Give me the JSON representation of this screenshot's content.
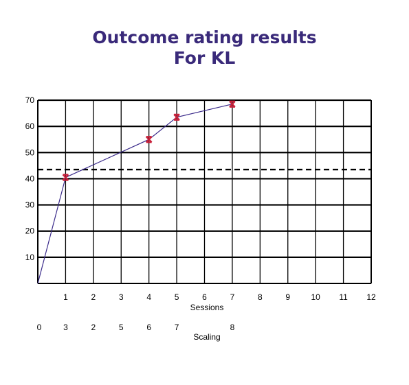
{
  "chart_data": {
    "type": "line",
    "title": "Outcome rating results",
    "subtitle": "For KL",
    "xlabel": "Sessions",
    "secondary_xlabel": "Scaling",
    "y_ticks": [
      "10",
      "20",
      "30",
      "40",
      "50",
      "60",
      "70"
    ],
    "x_ticks": [
      "1",
      "2",
      "3",
      "4",
      "5",
      "6",
      "7",
      "8",
      "9",
      "10",
      "11",
      "12"
    ],
    "scaling_ticks": [
      "0",
      "3",
      "2",
      "5",
      "6",
      "7",
      "8"
    ],
    "xlim": [
      0,
      12
    ],
    "ylim": [
      0,
      70
    ],
    "grid": true,
    "reference_line": {
      "y": 43.5,
      "style": "dashed"
    },
    "series": [
      {
        "x": [
          0,
          1,
          4,
          5,
          7
        ],
        "y": [
          0,
          40.5,
          55,
          63.5,
          68.5
        ],
        "markers": [
          false,
          true,
          true,
          true,
          true
        ]
      }
    ],
    "colors": {
      "title": "#3a2a7a",
      "line": "#3a2a8a",
      "marker": "#c8203a",
      "grid": "#000000"
    }
  }
}
